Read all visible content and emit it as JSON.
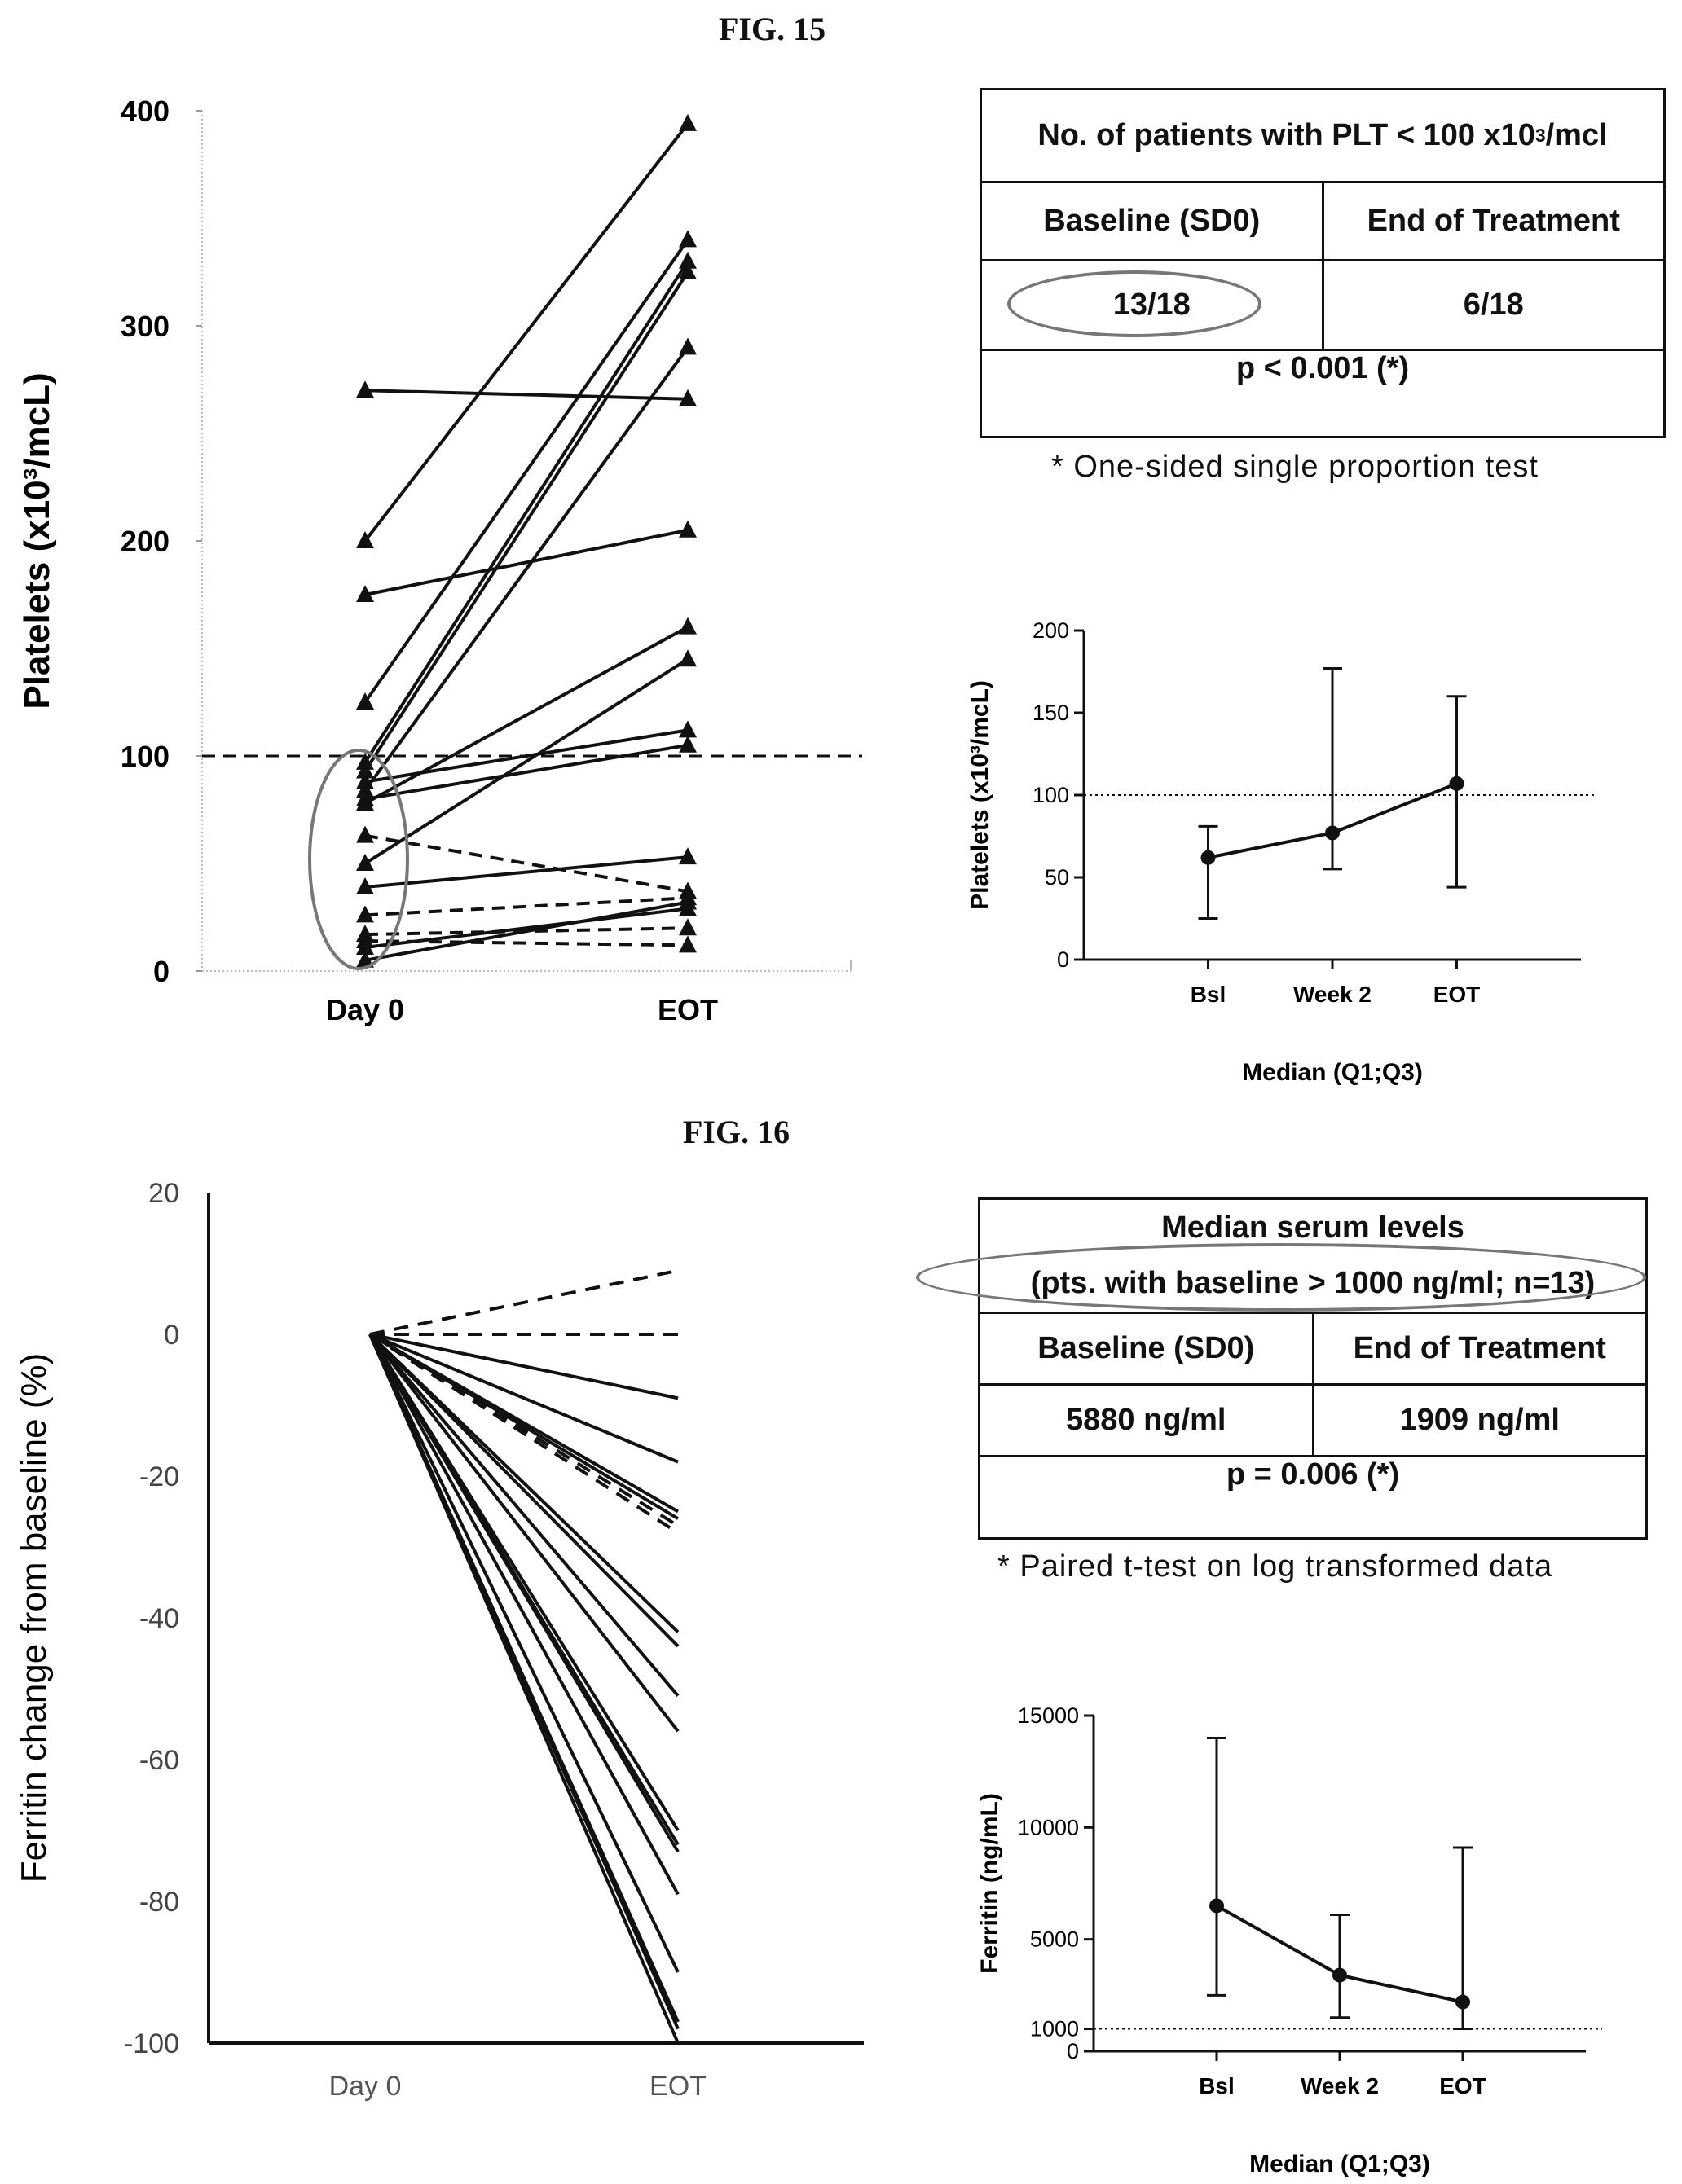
{
  "fig15": {
    "label": "FIG. 15",
    "main_chart": {
      "type": "line",
      "ylabel": "Platelets (x10³/mcL)",
      "x_categories": [
        "Day 0",
        "EOT"
      ],
      "ylim": [
        0,
        400
      ],
      "yticks": [
        0,
        100,
        200,
        300,
        400
      ],
      "reference_line": 100,
      "series": [
        {
          "values": [
            270,
            266
          ],
          "style": "solid"
        },
        {
          "values": [
            200,
            394
          ],
          "style": "solid"
        },
        {
          "values": [
            175,
            205
          ],
          "style": "solid"
        },
        {
          "values": [
            125,
            340
          ],
          "style": "solid"
        },
        {
          "values": [
            97,
            330
          ],
          "style": "solid"
        },
        {
          "values": [
            93,
            325
          ],
          "style": "solid"
        },
        {
          "values": [
            88,
            112
          ],
          "style": "solid"
        },
        {
          "values": [
            84,
            290
          ],
          "style": "solid"
        },
        {
          "values": [
            80,
            105
          ],
          "style": "solid"
        },
        {
          "values": [
            50,
            145
          ],
          "style": "solid"
        },
        {
          "values": [
            63,
            37
          ],
          "style": "dashed"
        },
        {
          "values": [
            78,
            160
          ],
          "style": "solid"
        },
        {
          "values": [
            39,
            53
          ],
          "style": "solid"
        },
        {
          "values": [
            26,
            34
          ],
          "style": "dashed"
        },
        {
          "values": [
            17,
            20
          ],
          "style": "dashed"
        },
        {
          "values": [
            14,
            12
          ],
          "style": "dashed"
        },
        {
          "values": [
            11,
            29
          ],
          "style": "solid"
        },
        {
          "values": [
            5,
            32
          ],
          "style": "solid"
        }
      ]
    },
    "table": {
      "title": "No. of patients with PLT < 100 x10",
      "title_sup": "3",
      "title_end": "/mcl",
      "col1": "Baseline (SD0)",
      "col2": "End of Treatment",
      "val1": "13/18",
      "val2": "6/18",
      "pvalue": "p < 0.001 (*)",
      "note": "* One-sided single proportion test"
    },
    "small_chart": {
      "type": "line",
      "ylabel": "Platelets (x10³/mcL)",
      "xlabel": "Median (Q1;Q3)",
      "categories": [
        "Bsl",
        "Week 2",
        "EOT"
      ],
      "ylim": [
        0,
        200
      ],
      "yticks": [
        0,
        50,
        100,
        150,
        200
      ],
      "reference_line": 100,
      "median": [
        62,
        77,
        107
      ],
      "q1": [
        25,
        55,
        44
      ],
      "q3": [
        81,
        177,
        160
      ]
    }
  },
  "fig16": {
    "label": "FIG. 16",
    "main_chart": {
      "type": "line",
      "ylabel": "Ferritin change from baseline (%)",
      "x_categories": [
        "Day 0",
        "EOT"
      ],
      "ylim": [
        -100,
        20
      ],
      "yticks": [
        20,
        0,
        -20,
        -40,
        -60,
        -80,
        -100
      ],
      "series": [
        {
          "values": [
            0,
            9
          ],
          "style": "dashed"
        },
        {
          "values": [
            0,
            0
          ],
          "style": "dashed"
        },
        {
          "values": [
            0,
            -9
          ],
          "style": "solid"
        },
        {
          "values": [
            0,
            -18
          ],
          "style": "solid"
        },
        {
          "values": [
            0,
            -25
          ],
          "style": "solid"
        },
        {
          "values": [
            0,
            -26
          ],
          "style": "solid"
        },
        {
          "values": [
            0,
            -27
          ],
          "style": "dashed"
        },
        {
          "values": [
            0,
            -28
          ],
          "style": "dashed"
        },
        {
          "values": [
            0,
            -42
          ],
          "style": "solid"
        },
        {
          "values": [
            0,
            -44
          ],
          "style": "solid"
        },
        {
          "values": [
            0,
            -51
          ],
          "style": "solid"
        },
        {
          "values": [
            0,
            -56
          ],
          "style": "solid"
        },
        {
          "values": [
            0,
            -70
          ],
          "style": "solid"
        },
        {
          "values": [
            0,
            -72
          ],
          "style": "solid"
        },
        {
          "values": [
            0,
            -73
          ],
          "style": "solid"
        },
        {
          "values": [
            0,
            -79
          ],
          "style": "solid"
        },
        {
          "values": [
            0,
            -90
          ],
          "style": "solid"
        },
        {
          "values": [
            0,
            -97
          ],
          "style": "solid"
        },
        {
          "values": [
            0,
            -98
          ],
          "style": "solid"
        },
        {
          "values": [
            0,
            -100
          ],
          "style": "solid"
        }
      ]
    },
    "table": {
      "title1": "Median serum levels",
      "title2": "(pts. with baseline > 1000 ng/ml; n=13)",
      "col1": "Baseline (SD0)",
      "col2": "End of Treatment",
      "val1": "5880 ng/ml",
      "val2": "1909 ng/ml",
      "pvalue": "p = 0.006 (*)",
      "note": "* Paired t-test on log transformed data"
    },
    "small_chart": {
      "type": "line",
      "ylabel": "Ferritin (ng/mL)",
      "xlabel": "Median (Q1;Q3)",
      "categories": [
        "Bsl",
        "Week 2",
        "EOT"
      ],
      "ylim": [
        0,
        15000
      ],
      "yticks": [
        0,
        1000,
        5000,
        10000,
        15000
      ],
      "reference_line": 1000,
      "median": [
        6500,
        3400,
        2200
      ],
      "q1": [
        2500,
        1500,
        1000
      ],
      "q3": [
        14000,
        6100,
        9100
      ]
    }
  }
}
